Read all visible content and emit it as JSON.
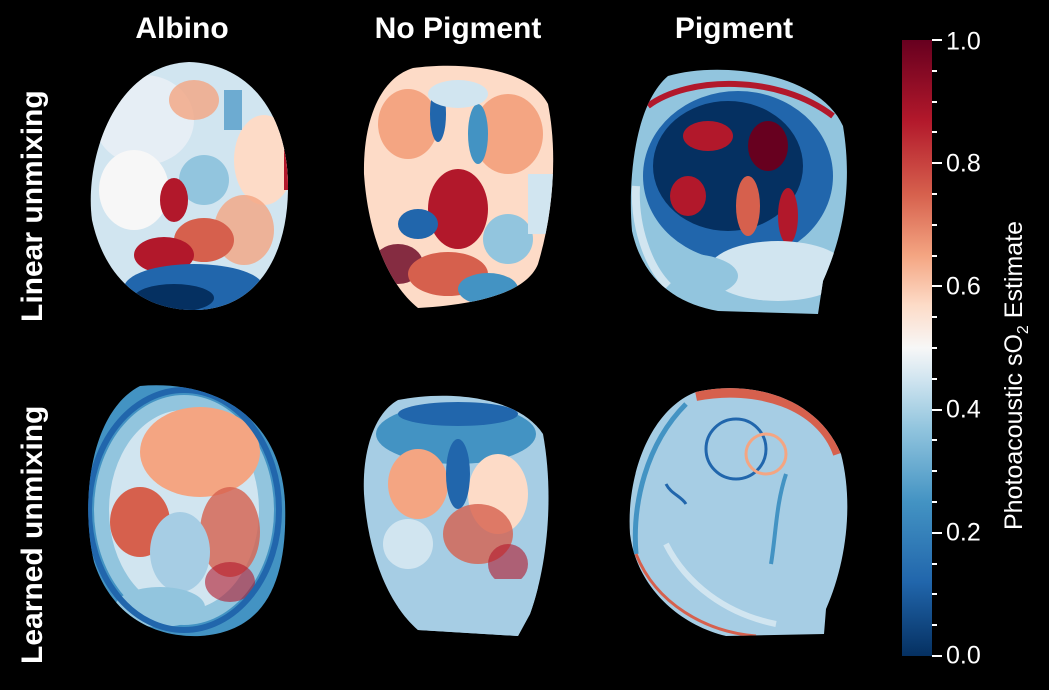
{
  "columns": [
    "Albino",
    "No Pigment",
    "Pigment"
  ],
  "rows": [
    "Linear unmixing",
    "Learned unmixing"
  ],
  "colorbar": {
    "label_prefix": "Photoacoustic sO",
    "label_subscript": "2",
    "label_suffix": " Estimate",
    "ticks": [
      "0.0",
      "0.2",
      "0.4",
      "0.6",
      "0.8",
      "1.0"
    ],
    "range": [
      0.0,
      1.0
    ],
    "colormap": "RdBu_r"
  },
  "colors": {
    "dark_blue": "#053061",
    "light_blue": "#a6cde4",
    "white": "#f7f7f7",
    "red": "#b2182b",
    "dark_red": "#67001f"
  }
}
